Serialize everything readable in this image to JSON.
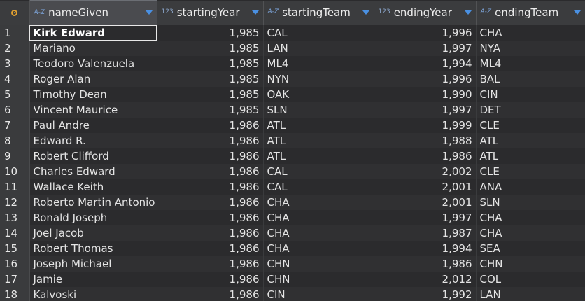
{
  "columns": [
    {
      "name": "nameGiven",
      "type_badge": "A-Z",
      "type": "text"
    },
    {
      "name": "startingYear",
      "type_badge": "123",
      "type": "number"
    },
    {
      "name": "startingTeam",
      "type_badge": "A-Z",
      "type": "text"
    },
    {
      "name": "endingYear",
      "type_badge": "123",
      "type": "number"
    },
    {
      "name": "endingTeam",
      "type_badge": "A-Z",
      "type": "text"
    }
  ],
  "icons": {
    "settings": "settings-circle-icon",
    "sort": "sort-down-icon"
  },
  "colors": {
    "accent": "#4a90e2",
    "settings": "#e0a030"
  },
  "rows": [
    {
      "index": "1",
      "nameGiven": "Kirk Edward",
      "startingYear": "1,985",
      "startingTeam": "CAL",
      "endingYear": "1,996",
      "endingTeam": "CHA"
    },
    {
      "index": "2",
      "nameGiven": "Mariano",
      "startingYear": "1,985",
      "startingTeam": "LAN",
      "endingYear": "1,997",
      "endingTeam": "NYA"
    },
    {
      "index": "3",
      "nameGiven": "Teodoro Valenzuela",
      "startingYear": "1,985",
      "startingTeam": "ML4",
      "endingYear": "1,994",
      "endingTeam": "ML4"
    },
    {
      "index": "4",
      "nameGiven": "Roger Alan",
      "startingYear": "1,985",
      "startingTeam": "NYN",
      "endingYear": "1,996",
      "endingTeam": "BAL"
    },
    {
      "index": "5",
      "nameGiven": "Timothy Dean",
      "startingYear": "1,985",
      "startingTeam": "OAK",
      "endingYear": "1,990",
      "endingTeam": "CIN"
    },
    {
      "index": "6",
      "nameGiven": "Vincent Maurice",
      "startingYear": "1,985",
      "startingTeam": "SLN",
      "endingYear": "1,997",
      "endingTeam": "DET"
    },
    {
      "index": "7",
      "nameGiven": "Paul Andre",
      "startingYear": "1,986",
      "startingTeam": "ATL",
      "endingYear": "1,999",
      "endingTeam": "CLE"
    },
    {
      "index": "8",
      "nameGiven": "Edward R.",
      "startingYear": "1,986",
      "startingTeam": "ATL",
      "endingYear": "1,988",
      "endingTeam": "ATL"
    },
    {
      "index": "9",
      "nameGiven": "Robert Clifford",
      "startingYear": "1,986",
      "startingTeam": "ATL",
      "endingYear": "1,986",
      "endingTeam": "ATL"
    },
    {
      "index": "10",
      "nameGiven": "Charles Edward",
      "startingYear": "1,986",
      "startingTeam": "CAL",
      "endingYear": "2,002",
      "endingTeam": "CLE"
    },
    {
      "index": "11",
      "nameGiven": "Wallace Keith",
      "startingYear": "1,986",
      "startingTeam": "CAL",
      "endingYear": "2,001",
      "endingTeam": "ANA"
    },
    {
      "index": "12",
      "nameGiven": "Roberto Martin Antonio",
      "startingYear": "1,986",
      "startingTeam": "CHA",
      "endingYear": "2,001",
      "endingTeam": "SLN"
    },
    {
      "index": "13",
      "nameGiven": "Ronald Joseph",
      "startingYear": "1,986",
      "startingTeam": "CHA",
      "endingYear": "1,997",
      "endingTeam": "CHA"
    },
    {
      "index": "14",
      "nameGiven": "Joel Jacob",
      "startingYear": "1,986",
      "startingTeam": "CHA",
      "endingYear": "1,987",
      "endingTeam": "CHA"
    },
    {
      "index": "15",
      "nameGiven": "Robert Thomas",
      "startingYear": "1,986",
      "startingTeam": "CHA",
      "endingYear": "1,994",
      "endingTeam": "SEA"
    },
    {
      "index": "16",
      "nameGiven": "Joseph Michael",
      "startingYear": "1,986",
      "startingTeam": "CHN",
      "endingYear": "1,986",
      "endingTeam": "CHN"
    },
    {
      "index": "17",
      "nameGiven": "Jamie",
      "startingYear": "1,986",
      "startingTeam": "CHN",
      "endingYear": "2,012",
      "endingTeam": "COL"
    },
    {
      "index": "18",
      "nameGiven": "Kalvoski",
      "startingYear": "1,986",
      "startingTeam": "CIN",
      "endingYear": "1,992",
      "endingTeam": "LAN"
    }
  ]
}
